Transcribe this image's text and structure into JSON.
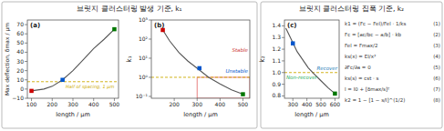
{
  "chart_data": [
    {
      "type": "line",
      "title": "브릿지 클러스터링 발생 기준, k₁",
      "panel_label": "(a)",
      "xlabel": "length / μm",
      "ylabel": "Max deflection, δmax / μm",
      "series": [
        {
          "type": "line",
          "color": "#555555",
          "x": [
            100,
            130,
            160,
            200,
            250,
            300,
            350,
            400,
            450,
            500
          ],
          "values": [
            -2,
            -1,
            0,
            3,
            10,
            20,
            32,
            44,
            54,
            65
          ]
        },
        {
          "type": "scatter",
          "marker": "square",
          "colors": [
            "#cc0000",
            "#0055cc",
            "#007700"
          ],
          "x": [
            100,
            250,
            500
          ],
          "values": [
            -2,
            10,
            65
          ]
        }
      ],
      "hline": {
        "y": 8,
        "color": "#ccaa00",
        "label": "Half of spacing, 1 μm"
      },
      "xlim": [
        80,
        520
      ],
      "ylim": [
        -10,
        75
      ],
      "xticks": [
        100,
        200,
        300,
        400,
        500
      ],
      "yticks": [
        {
          "value": -10,
          "label": "−10"
        },
        0,
        10,
        20,
        30,
        40,
        50,
        60,
        70
      ]
    },
    {
      "type": "line",
      "log": "y",
      "panel_label": "(b)",
      "xlabel": "length / μm",
      "ylabel": "k₁",
      "series": [
        {
          "type": "line",
          "color": "#555555",
          "x": [
            150,
            180,
            220,
            260,
            300,
            350,
            400,
            450,
            500
          ],
          "values": [
            300,
            80,
            20,
            7,
            3.0,
            1.0,
            0.45,
            0.22,
            0.13
          ]
        },
        {
          "type": "scatter",
          "marker": "square",
          "colors": [
            "#cc0000",
            "#0055cc",
            "#007700"
          ],
          "x": [
            150,
            310,
            500
          ],
          "values": [
            300,
            3.0,
            0.13
          ]
        }
      ],
      "hline": {
        "y": 1.0,
        "color": "#ccaa00"
      },
      "region": {
        "x0": 300,
        "color": "#e88080"
      },
      "annotations": [
        {
          "text": "Stable",
          "color": "#cc3333"
        },
        {
          "text": "Unstable",
          "color": "#0055cc"
        }
      ],
      "xlim": [
        100,
        530
      ],
      "ylim": [
        0.08,
        1000
      ],
      "xticks": [
        200,
        300,
        400,
        500
      ],
      "yticks": [
        {
          "value": 0.1,
          "label": "10⁻¹"
        },
        {
          "value": 1,
          "label": "10⁰"
        },
        {
          "value": 10,
          "label": "10¹"
        },
        {
          "value": 100,
          "label": "10²"
        },
        {
          "value": 1000,
          "label": "10³"
        }
      ]
    },
    {
      "type": "line",
      "title": "브릿지 클러스터링 집폭 기준, k₂",
      "panel_label": "(c)",
      "xlabel": "length / μm",
      "ylabel": "k₂",
      "series": [
        {
          "type": "line",
          "color": "#555555",
          "x": [
            250,
            290,
            330,
            370,
            410,
            450,
            500,
            550,
            600
          ],
          "values": [
            1.38,
            1.28,
            1.18,
            1.11,
            1.04,
            0.99,
            0.93,
            0.87,
            0.82
          ]
        },
        {
          "type": "scatter",
          "marker": "square",
          "colors": [
            "#0055cc",
            "#007700"
          ],
          "x": [
            300,
            600
          ],
          "values": [
            1.25,
            0.82
          ]
        }
      ],
      "hline": {
        "y": 1.0,
        "color": "#ccaa00"
      },
      "annotations": [
        {
          "text": "Recover",
          "color": "#2980b9"
        },
        {
          "text": "Non-recover",
          "color": "#27ae60"
        }
      ],
      "equations": [
        {
          "text": "k1 = (Fc − Fel)/Fel · 1/ks",
          "label": "(1)"
        },
        {
          "text": "Fc = [ac/bc − a/b] · kb",
          "label": "(2)"
        },
        {
          "text": "Fel = Fmax/2",
          "label": "(3)"
        },
        {
          "text": "ks(x) = EI/x³",
          "label": "(4)"
        },
        {
          "text": "∂Fc/∂a = 0",
          "label": "(5)"
        },
        {
          "text": "ks(s) = cst · s",
          "label": "(6)"
        },
        {
          "text": "l = l0 + [δmax/s]²",
          "label": "(7)"
        },
        {
          "text": "k2 = 1 − [1 − s/l]^(1/2)",
          "label": "(8)"
        }
      ],
      "xlim": [
        240,
        630
      ],
      "ylim": [
        0.78,
        1.45
      ],
      "xticks": [
        300,
        400,
        500,
        600
      ],
      "yticks": [
        0.8,
        0.9,
        {
          "value": 1.0,
          "label": "1.0"
        },
        1.1,
        1.2,
        1.3,
        1.4
      ]
    }
  ]
}
